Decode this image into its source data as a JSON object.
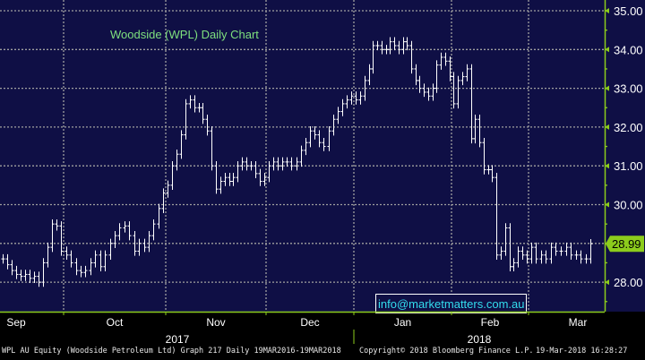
{
  "chart_data": {
    "type": "ohlc",
    "title": "Woodside (WPL) Daily Chart",
    "ylim": [
      27.3,
      35.3
    ],
    "yticks": [
      "35.00",
      "34.00",
      "33.00",
      "32.00",
      "31.00",
      "30.00",
      "28.00"
    ],
    "last_price": 28.99,
    "last_price_label": "28.99",
    "grid": true,
    "months": [
      {
        "label": "Sep",
        "closes": [
          28.6,
          28.45,
          28.3,
          28.2,
          28.15,
          28.2,
          28.1,
          28.15,
          28.0,
          28.5,
          28.9,
          29.5,
          29.45,
          28.8
        ]
      },
      {
        "label": "Oct",
        "closes": [
          28.7,
          28.5,
          28.3,
          28.25,
          28.3,
          28.5,
          28.7,
          28.4,
          28.7,
          29.0,
          29.2,
          29.4,
          29.45,
          29.2,
          28.8,
          29.0,
          28.9,
          29.2,
          29.5,
          29.9,
          30.3
        ]
      },
      {
        "label": "Nov",
        "closes": [
          30.5,
          31.0,
          31.3,
          31.8,
          32.6,
          32.7,
          32.5,
          32.5,
          32.2,
          31.9,
          31.0,
          30.4,
          30.6,
          30.7,
          30.6,
          30.7,
          31.0,
          31.1,
          31.0,
          31.0,
          30.8,
          30.6,
          30.7
        ]
      },
      {
        "label": "Dec",
        "closes": [
          31.0,
          31.1,
          31.0,
          31.1,
          31.1,
          31.0,
          31.1,
          31.4,
          31.6,
          31.9,
          31.8,
          31.6,
          31.5,
          31.9,
          32.2,
          32.4,
          32.6,
          32.7,
          32.8
        ]
      },
      {
        "label": "Jan",
        "closes": [
          32.7,
          32.8,
          33.2,
          33.5,
          34.1,
          34.1,
          34.0,
          34.0,
          34.2,
          34.1,
          34.0,
          34.2,
          34.1,
          33.5,
          33.2,
          33.0,
          32.9,
          32.8,
          33.0,
          33.6,
          33.8,
          33.7,
          33.3
        ]
      },
      {
        "label": "Feb",
        "closes": [
          32.6,
          33.2,
          33.3,
          33.5,
          31.7,
          32.2,
          31.6,
          30.9,
          30.9,
          30.7,
          28.7,
          28.8,
          29.4,
          28.4,
          28.5,
          28.8,
          28.7,
          28.6
        ]
      },
      {
        "label": "Mar",
        "closes": [
          28.9,
          28.6,
          28.7,
          28.6,
          28.9,
          28.8,
          28.8,
          28.9,
          28.7,
          28.7,
          28.6,
          28.6,
          28.99
        ]
      }
    ],
    "years": [
      "2017",
      "2018"
    ]
  },
  "watermark": "info@marketmatters.com.au",
  "footer": {
    "security": "WPL AU Equity (Woodside Petroleum Ltd) Graph 217  Daily 19MAR2016-19MAR2018",
    "copyright": "Copyright© 2018 Bloomberg Finance L.P.",
    "timestamp": "19-Mar-2018 16:28:27"
  },
  "colors": {
    "background": "#0f0f45",
    "bars": "#ffffff",
    "title": "#7ee07e",
    "axis": "#8ccc1c",
    "grid": "#a0a0a0",
    "email": "#33ddee",
    "price_tag": "#8ccc1c"
  }
}
